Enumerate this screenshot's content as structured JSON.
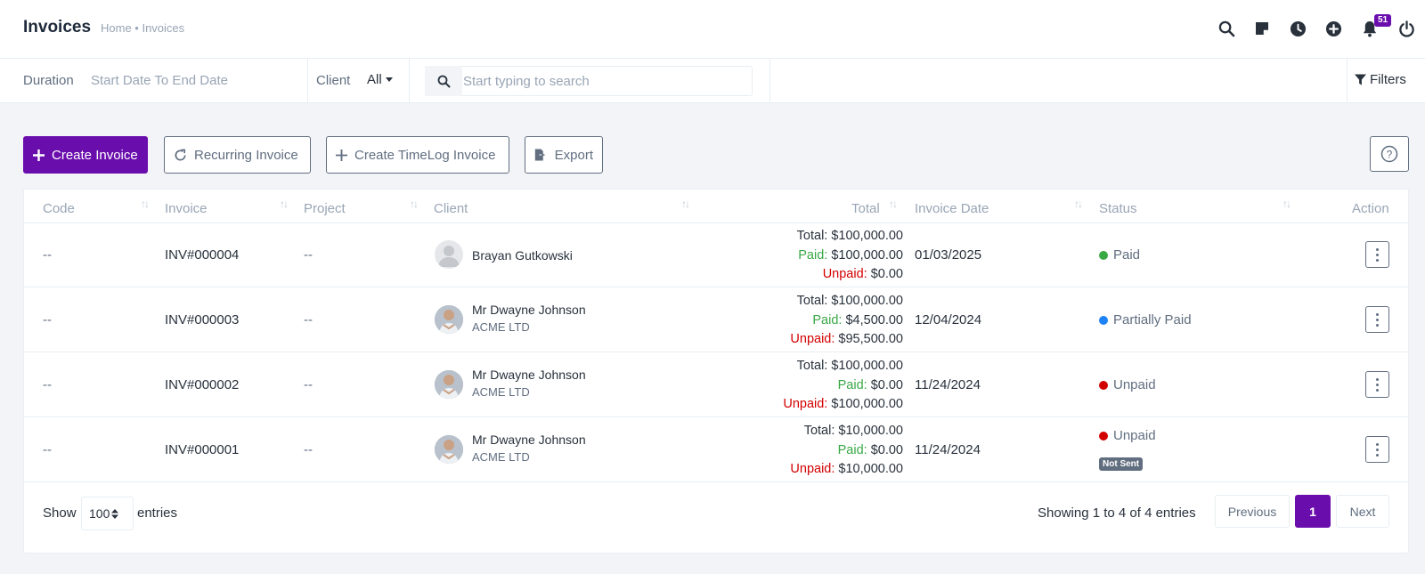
{
  "header": {
    "title": "Invoices",
    "breadcrumb": "Home • Invoices",
    "notification_count": "51",
    "icons": [
      "search-icon",
      "sticky-note-icon",
      "clock-icon",
      "add-circle-icon",
      "bell-icon",
      "power-icon"
    ]
  },
  "filters": {
    "duration_label": "Duration",
    "duration_value": "Start Date To End Date",
    "client_label": "Client",
    "client_value": "All",
    "search_placeholder": "Start typing to search",
    "filters_label": "Filters"
  },
  "actions": {
    "create_invoice": "Create Invoice",
    "recurring_invoice": "Recurring Invoice",
    "create_timelog_invoice": "Create TimeLog Invoice",
    "export": "Export",
    "help": "?"
  },
  "table": {
    "columns": [
      "Code",
      "Invoice",
      "Project",
      "Client",
      "Total",
      "Invoice Date",
      "Status",
      "Action"
    ],
    "labels": {
      "total": "Total:",
      "paid": "Paid:",
      "unpaid": "Unpaid:"
    },
    "rows": [
      {
        "code": "--",
        "invoice": "INV#000004",
        "project": "--",
        "client_name": "Brayan Gutkowski",
        "client_company": "",
        "total": "$100,000.00",
        "paid": "$100,000.00",
        "unpaid": "$0.00",
        "date": "01/03/2025",
        "status": "Paid",
        "status_color": "#39a845",
        "badge": ""
      },
      {
        "code": "--",
        "invoice": "INV#000003",
        "project": "--",
        "client_name": "Mr Dwayne Johnson",
        "client_company": "ACME LTD",
        "total": "$100,000.00",
        "paid": "$4,500.00",
        "unpaid": "$95,500.00",
        "date": "12/04/2024",
        "status": "Partially Paid",
        "status_color": "#1d82f5",
        "badge": ""
      },
      {
        "code": "--",
        "invoice": "INV#000002",
        "project": "--",
        "client_name": "Mr Dwayne Johnson",
        "client_company": "ACME LTD",
        "total": "$100,000.00",
        "paid": "$0.00",
        "unpaid": "$100,000.00",
        "date": "11/24/2024",
        "status": "Unpaid",
        "status_color": "#d30000",
        "badge": ""
      },
      {
        "code": "--",
        "invoice": "INV#000001",
        "project": "--",
        "client_name": "Mr Dwayne Johnson",
        "client_company": "ACME LTD",
        "total": "$10,000.00",
        "paid": "$0.00",
        "unpaid": "$10,000.00",
        "date": "11/24/2024",
        "status": "Unpaid",
        "status_color": "#d30000",
        "badge": "Not Sent"
      }
    ]
  },
  "footer": {
    "show": "Show",
    "entries_value": "100",
    "entries": "entries",
    "showing_text": "Showing 1 to 4 of 4 entries",
    "previous": "Previous",
    "current_page": "1",
    "next": "Next"
  }
}
